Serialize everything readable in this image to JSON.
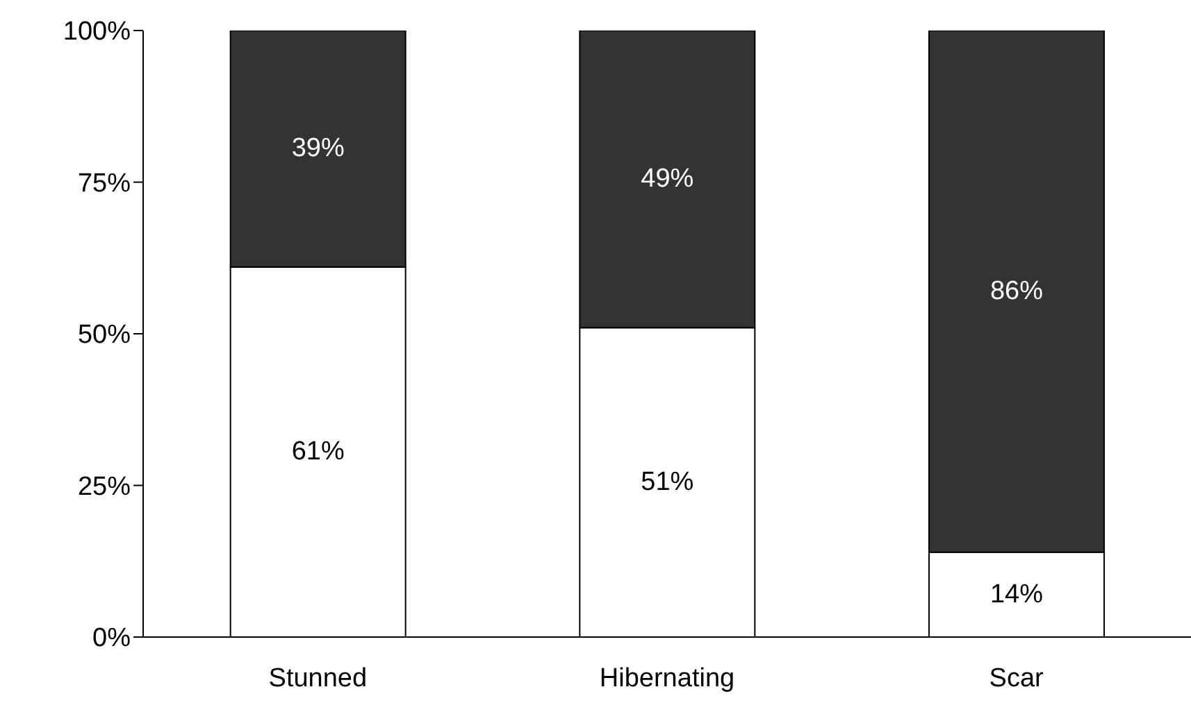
{
  "chart_data": {
    "type": "bar",
    "stacked": true,
    "categories": [
      "Stunned",
      "Hibernating",
      "Scar"
    ],
    "series": [
      {
        "color": "#ffffff",
        "values": [
          61,
          51,
          14
        ],
        "value_labels": [
          "61%",
          "51%",
          "14%"
        ]
      },
      {
        "color": "#333333",
        "values": [
          39,
          49,
          86
        ],
        "value_labels": [
          "39%",
          "49%",
          "86%"
        ]
      }
    ],
    "ylim": [
      0,
      100
    ],
    "yticks": [
      {
        "value": 0,
        "label": "0%"
      },
      {
        "value": 25,
        "label": "25%"
      },
      {
        "value": 50,
        "label": "50%"
      },
      {
        "value": 75,
        "label": "75%"
      },
      {
        "value": 100,
        "label": "100%"
      }
    ],
    "grid": false,
    "legend": false
  }
}
